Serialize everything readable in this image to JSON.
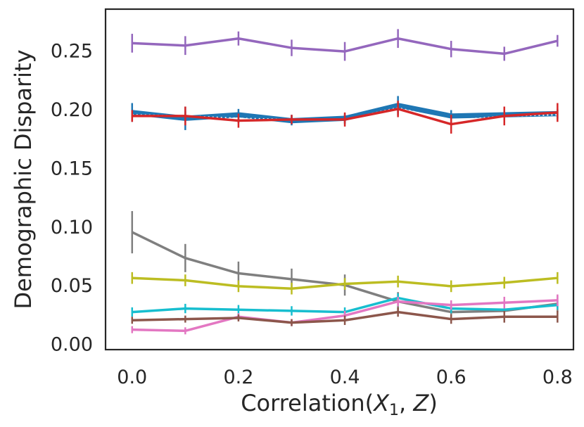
{
  "chart_data": {
    "type": "line",
    "title": "",
    "xlabel": "Correlation(X_1, Z)",
    "xlabel_parts": {
      "pre": "Correlation(",
      "var1": "X",
      "sub1": "1",
      "comma": ", ",
      "var2": "Z",
      "post": ")"
    },
    "ylabel": "Demographic Disparity",
    "xlim": [
      -0.05,
      0.83
    ],
    "ylim": [
      -0.005,
      0.285
    ],
    "x": [
      0.0,
      0.1,
      0.2,
      0.3,
      0.4,
      0.5,
      0.6,
      0.7,
      0.8
    ],
    "xticks": [
      0.0,
      0.2,
      0.4,
      0.6,
      0.8
    ],
    "xtick_labels": [
      "0.0",
      "0.2",
      "0.4",
      "0.6",
      "0.8"
    ],
    "yticks": [
      0.0,
      0.05,
      0.1,
      0.15,
      0.2,
      0.25
    ],
    "ytick_labels": [
      "0.00",
      "0.05",
      "0.10",
      "0.15",
      "0.20",
      "0.25"
    ],
    "grid": false,
    "series": [
      {
        "name": "purple",
        "color": "#9467bd",
        "values": [
          0.256,
          0.254,
          0.26,
          0.252,
          0.249,
          0.26,
          0.251,
          0.247,
          0.258
        ],
        "errors": [
          0.008,
          0.008,
          0.006,
          0.007,
          0.008,
          0.008,
          0.007,
          0.006,
          0.005
        ]
      },
      {
        "name": "blue",
        "color": "#1f77b4",
        "values": [
          0.197,
          0.192,
          0.195,
          0.19,
          0.192,
          0.203,
          0.194,
          0.195,
          0.196
        ],
        "errors": [
          0.008,
          0.01,
          0.005,
          0.004,
          0.004,
          0.008,
          0.005,
          0.004,
          0.004
        ]
      },
      {
        "name": "blue-dotted",
        "color": "#1f77b4",
        "values": [
          0.195,
          0.194,
          0.192,
          0.191,
          0.191,
          0.201,
          0.19,
          0.194,
          0.195
        ],
        "errors": [
          0.004,
          0.004,
          0.004,
          0.004,
          0.004,
          0.004,
          0.004,
          0.004,
          0.004
        ]
      },
      {
        "name": "red",
        "color": "#d62728",
        "values": [
          0.194,
          0.194,
          0.19,
          0.191,
          0.191,
          0.2,
          0.187,
          0.194,
          0.197
        ],
        "errors": [
          0.005,
          0.008,
          0.006,
          0.004,
          0.006,
          0.007,
          0.008,
          0.008,
          0.008
        ]
      },
      {
        "name": "gray",
        "color": "#7f7f7f",
        "values": [
          0.095,
          0.073,
          0.06,
          0.055,
          0.05,
          0.036,
          0.027,
          0.028,
          0.034
        ],
        "errors": [
          0.018,
          0.012,
          0.01,
          0.009,
          0.009,
          0.008,
          0.007,
          0.007,
          0.007
        ]
      },
      {
        "name": "olive",
        "color": "#bcbd22",
        "values": [
          0.056,
          0.054,
          0.049,
          0.047,
          0.051,
          0.053,
          0.049,
          0.052,
          0.056
        ],
        "errors": [
          0.005,
          0.005,
          0.005,
          0.005,
          0.005,
          0.005,
          0.005,
          0.005,
          0.005
        ]
      },
      {
        "name": "cyan",
        "color": "#17becf",
        "values": [
          0.027,
          0.03,
          0.029,
          0.028,
          0.027,
          0.039,
          0.03,
          0.029,
          0.033
        ],
        "errors": [
          0.004,
          0.004,
          0.004,
          0.004,
          0.004,
          0.004,
          0.004,
          0.004,
          0.004
        ]
      },
      {
        "name": "pink",
        "color": "#e377c2",
        "values": [
          0.012,
          0.011,
          0.023,
          0.018,
          0.024,
          0.036,
          0.033,
          0.035,
          0.037
        ],
        "errors": [
          0.003,
          0.003,
          0.003,
          0.003,
          0.004,
          0.004,
          0.004,
          0.005,
          0.005
        ]
      },
      {
        "name": "brown",
        "color": "#8c564b",
        "values": [
          0.02,
          0.021,
          0.022,
          0.018,
          0.02,
          0.027,
          0.021,
          0.023,
          0.023
        ],
        "errors": [
          0.003,
          0.003,
          0.003,
          0.003,
          0.004,
          0.004,
          0.004,
          0.005,
          0.005
        ]
      }
    ]
  }
}
